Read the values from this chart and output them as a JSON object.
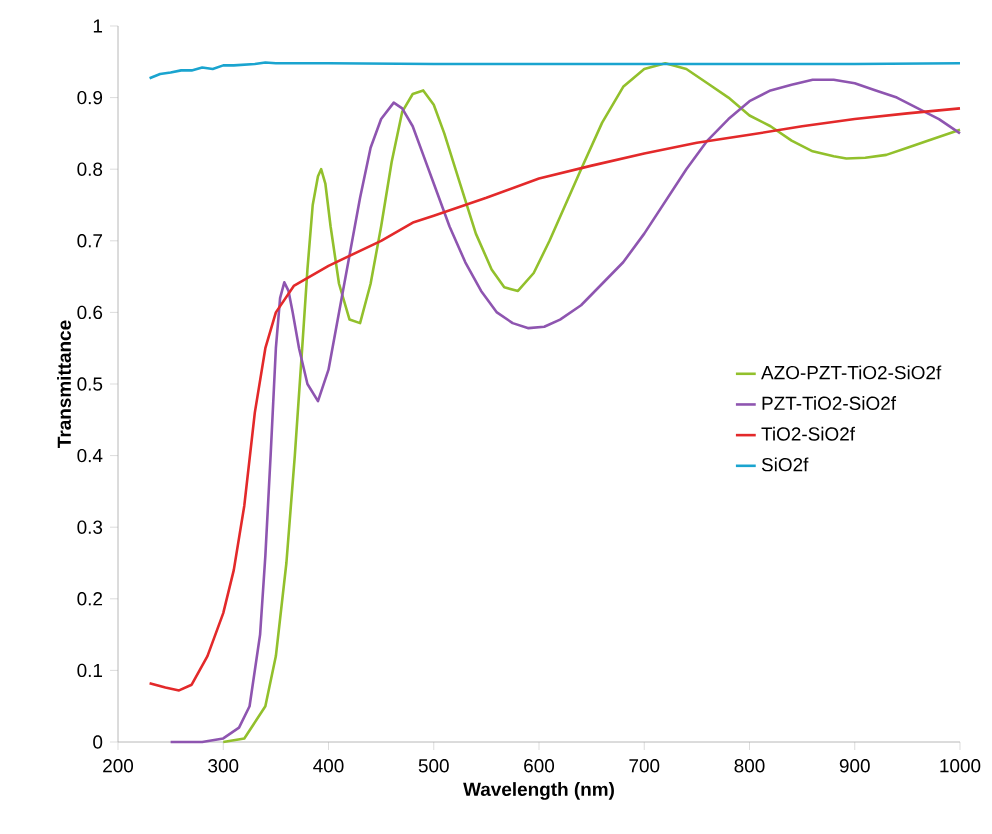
{
  "chart_data": {
    "type": "line",
    "xlabel": "Wavelength (nm)",
    "ylabel": "Transmittance",
    "xlim": [
      200,
      1000
    ],
    "xticks": [
      200,
      300,
      400,
      500,
      600,
      700,
      800,
      900,
      1000
    ],
    "ylim": [
      0,
      1
    ],
    "yticks": [
      0,
      0.1,
      0.2,
      0.3,
      0.4,
      0.5,
      0.6,
      0.7,
      0.8,
      0.9,
      1
    ],
    "grid": false,
    "legend": "right",
    "marker": "none",
    "line_style": "solid",
    "series": [
      {
        "name": "AZO-PZT-TiO2-SiO2f",
        "color": "#92c02c",
        "x": [
          300,
          320,
          340,
          350,
          360,
          368,
          375,
          380,
          385,
          390,
          393,
          397,
          402,
          410,
          420,
          430,
          440,
          450,
          460,
          470,
          480,
          490,
          500,
          510,
          525,
          540,
          555,
          567,
          580,
          595,
          610,
          625,
          640,
          660,
          680,
          700,
          720,
          740,
          760,
          780,
          800,
          820,
          840,
          860,
          880,
          892,
          910,
          930,
          950,
          970,
          1000
        ],
        "values": [
          0,
          0.005,
          0.05,
          0.12,
          0.25,
          0.4,
          0.55,
          0.66,
          0.75,
          0.79,
          0.8,
          0.78,
          0.72,
          0.64,
          0.59,
          0.585,
          0.64,
          0.72,
          0.81,
          0.88,
          0.905,
          0.91,
          0.89,
          0.85,
          0.78,
          0.71,
          0.66,
          0.635,
          0.63,
          0.655,
          0.7,
          0.75,
          0.8,
          0.865,
          0.915,
          0.94,
          0.948,
          0.94,
          0.92,
          0.9,
          0.875,
          0.86,
          0.84,
          0.825,
          0.818,
          0.815,
          0.816,
          0.82,
          0.83,
          0.84,
          0.855
        ]
      },
      {
        "name": "PZT-TiO2-SiO2f",
        "color": "#8e55b0",
        "x": [
          250,
          280,
          300,
          315,
          325,
          335,
          340,
          345,
          350,
          354,
          358,
          362,
          366,
          372,
          380,
          390,
          400,
          410,
          420,
          430,
          440,
          450,
          462,
          470,
          480,
          490,
          500,
          515,
          530,
          545,
          560,
          575,
          590,
          605,
          620,
          640,
          660,
          680,
          700,
          720,
          740,
          760,
          780,
          800,
          820,
          840,
          860,
          880,
          900,
          920,
          940,
          960,
          980,
          1000
        ],
        "values": [
          0,
          0,
          0.005,
          0.02,
          0.05,
          0.15,
          0.26,
          0.4,
          0.55,
          0.62,
          0.642,
          0.63,
          0.6,
          0.55,
          0.5,
          0.476,
          0.52,
          0.6,
          0.68,
          0.76,
          0.83,
          0.87,
          0.893,
          0.885,
          0.86,
          0.82,
          0.78,
          0.72,
          0.67,
          0.63,
          0.6,
          0.585,
          0.578,
          0.58,
          0.59,
          0.61,
          0.64,
          0.67,
          0.71,
          0.755,
          0.8,
          0.84,
          0.87,
          0.895,
          0.91,
          0.918,
          0.925,
          0.925,
          0.92,
          0.91,
          0.9,
          0.885,
          0.87,
          0.85
        ]
      },
      {
        "name": "TiO2-SiO2f",
        "color": "#e3292a",
        "x": [
          230,
          245,
          258,
          270,
          285,
          300,
          310,
          320,
          330,
          340,
          350,
          367,
          400,
          450,
          481,
          500,
          550,
          600,
          650,
          700,
          750,
          800,
          850,
          900,
          950,
          1000
        ],
        "values": [
          0.082,
          0.076,
          0.072,
          0.08,
          0.12,
          0.18,
          0.24,
          0.33,
          0.46,
          0.55,
          0.6,
          0.637,
          0.665,
          0.7,
          0.726,
          0.735,
          0.76,
          0.787,
          0.805,
          0.822,
          0.837,
          0.848,
          0.86,
          0.87,
          0.878,
          0.885
        ]
      },
      {
        "name": "SiO2f",
        "color": "#1aa4cf",
        "x": [
          230,
          240,
          250,
          260,
          270,
          280,
          290,
          300,
          310,
          320,
          330,
          340,
          350,
          400,
          500,
          600,
          700,
          800,
          900,
          1000
        ],
        "values": [
          0.927,
          0.933,
          0.935,
          0.938,
          0.938,
          0.942,
          0.94,
          0.945,
          0.945,
          0.946,
          0.947,
          0.949,
          0.948,
          0.948,
          0.947,
          0.947,
          0.947,
          0.947,
          0.947,
          0.948
        ]
      }
    ]
  }
}
